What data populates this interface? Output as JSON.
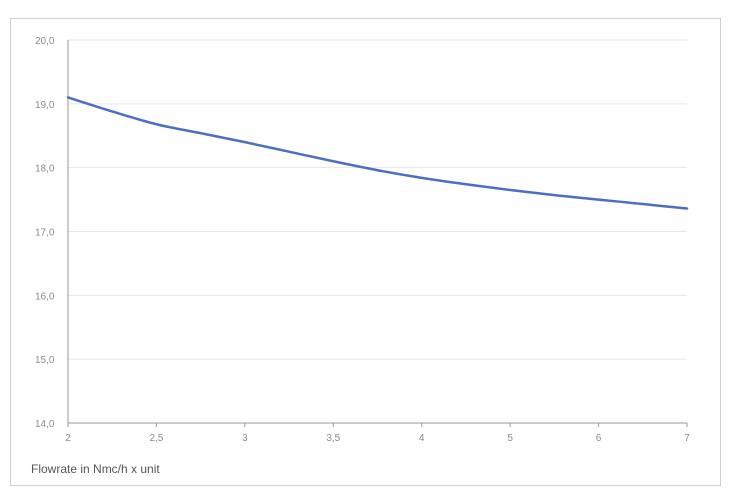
{
  "chart_data": {
    "type": "line",
    "title": "",
    "xlabel": "Flowrate in Nmc/h x unit",
    "ylabel": "",
    "x_tick_labels": [
      "2",
      "2,5",
      "3",
      "3,5",
      "4",
      "5",
      "6",
      "7"
    ],
    "y_tick_labels": [
      "20,0",
      "19,0",
      "18,0",
      "17,0",
      "16,0",
      "15,0",
      "14,0"
    ],
    "y_ticks": [
      20,
      19,
      18,
      17,
      16,
      15,
      14
    ],
    "ylim": [
      14,
      20
    ],
    "grid": true,
    "legend": "none",
    "series": [
      {
        "color": "#4a6fc4",
        "x_index": [
          0,
          0.5,
          1,
          1.5,
          2,
          2.5,
          3,
          3.5,
          4,
          4.5,
          5,
          5.5,
          6,
          6.5,
          7
        ],
        "values": [
          19.1,
          18.88,
          18.68,
          18.54,
          18.4,
          18.25,
          18.1,
          17.96,
          17.84,
          17.74,
          17.65,
          17.57,
          17.5,
          17.43,
          17.36
        ]
      }
    ]
  }
}
